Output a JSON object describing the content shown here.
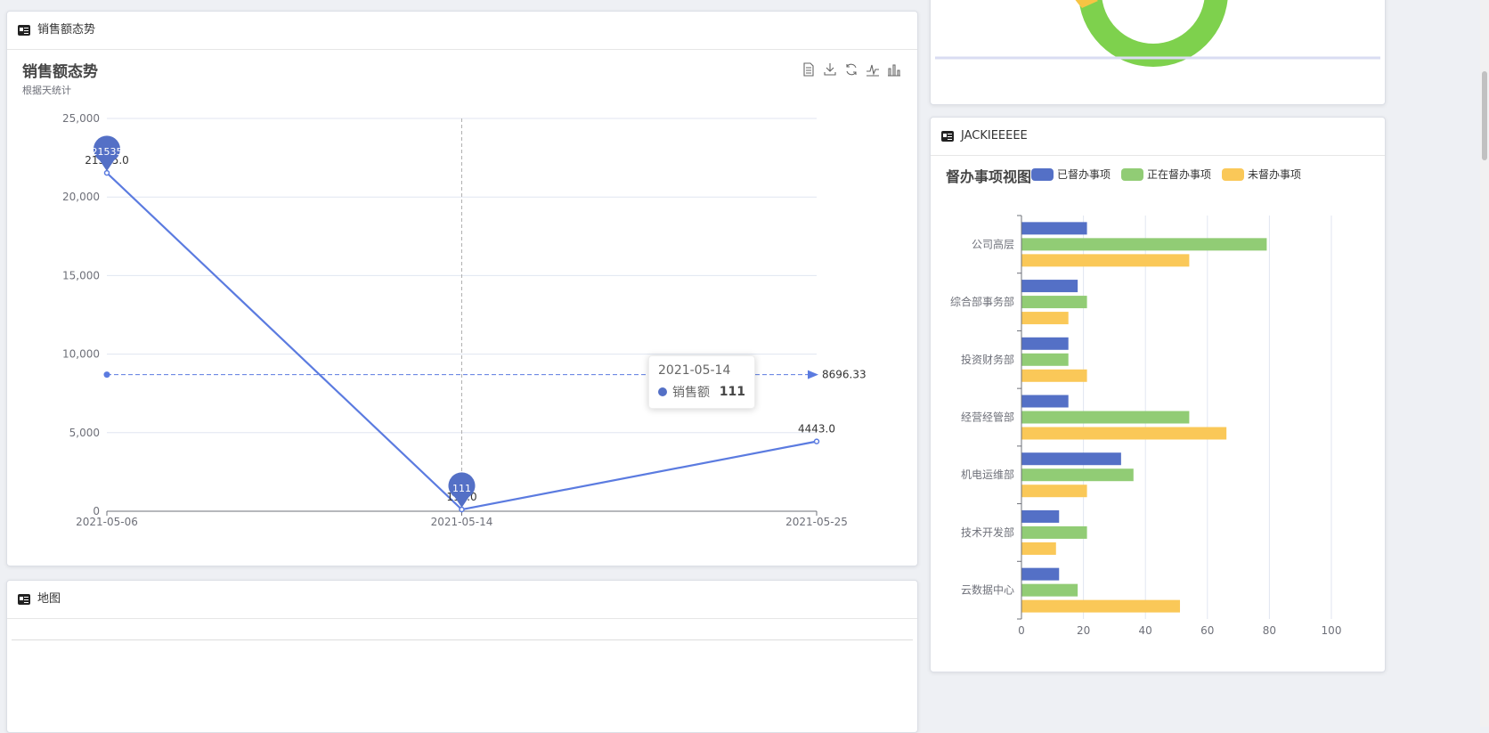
{
  "panels": {
    "sales": {
      "header": "销售额态势"
    },
    "map": {
      "header": "地图"
    },
    "supervise": {
      "header": "JACKIEEEEE"
    }
  },
  "tooltip": {
    "date": "2021-05-14",
    "series": "销售额",
    "value": "111"
  },
  "colors": {
    "line": "#5470c6",
    "line_stroke": "#5b7be0",
    "green": "#91cc75",
    "yellow": "#fac858",
    "donut_green": "#7ed14d",
    "donut_yellow": "#f6c444"
  },
  "toolbox_icons": [
    "data-view-icon",
    "download-icon",
    "refresh-icon",
    "line-chart-icon",
    "bar-chart-icon"
  ],
  "chart_data": [
    {
      "type": "line",
      "title": "销售额态势",
      "subtitle": "根据天统计",
      "categories": [
        "2021-05-06",
        "2021-05-14",
        "2021-05-25"
      ],
      "series": [
        {
          "name": "销售额",
          "values": [
            21535,
            111,
            4443
          ]
        }
      ],
      "data_labels": [
        "21535.0",
        "111.0",
        "4443.0"
      ],
      "mark_points": [
        {
          "label": "21535",
          "index": 0
        },
        {
          "label": "111",
          "index": 1
        }
      ],
      "mark_line": {
        "value": 8696.33,
        "label": "8696.33"
      },
      "ylim": [
        0,
        25000
      ],
      "yticks": [
        0,
        5000,
        10000,
        15000,
        20000,
        25000
      ],
      "ytick_labels": [
        "0",
        "5,000",
        "10,000",
        "15,000",
        "20,000",
        "25,000"
      ],
      "grid": true
    },
    {
      "type": "bar",
      "title": "督办事项视图",
      "orientation": "horizontal",
      "categories": [
        "公司高层",
        "综合部事务部",
        "投资财务部",
        "经营经管部",
        "机电运维部",
        "技术开发部",
        "云数据中心"
      ],
      "series": [
        {
          "name": "已督办事项",
          "values": [
            21,
            18,
            15,
            15,
            32,
            12,
            12
          ]
        },
        {
          "name": "正在督办事项",
          "values": [
            79,
            21,
            15,
            54,
            36,
            21,
            18
          ]
        },
        {
          "name": "未督办事项",
          "values": [
            54,
            15,
            21,
            66,
            21,
            11,
            51
          ]
        }
      ],
      "xlim": [
        0,
        100
      ],
      "xticks": [
        0,
        20,
        40,
        60,
        80,
        100
      ],
      "legend": "top",
      "grid": true
    }
  ]
}
